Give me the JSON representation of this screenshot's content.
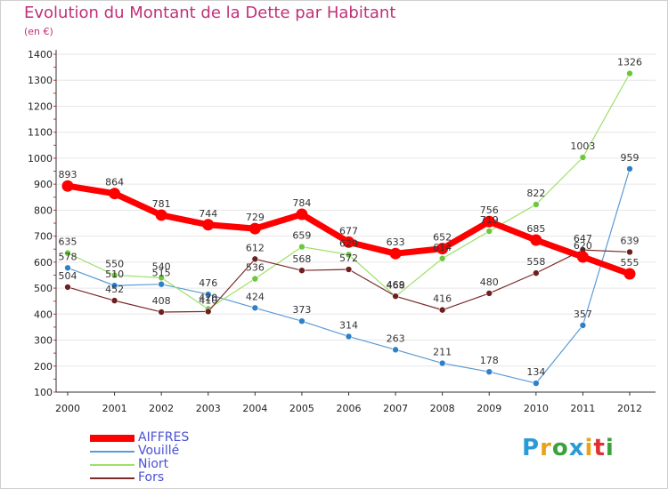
{
  "header": {
    "title": "Evolution du Montant de la Dette par Habitant",
    "unit": "(en €)"
  },
  "brand": {
    "text": "Proxiti",
    "letter_colors": [
      "#2a9bd6",
      "#e8a317",
      "#3aa23a",
      "#2a9bd6",
      "#e8a317",
      "#e03030",
      "#3aa23a"
    ]
  },
  "chart_data": {
    "type": "line",
    "title": "Evolution du Montant de la Dette par Habitant",
    "ylabel": "(en €)",
    "xlabel": "",
    "ylim": [
      100,
      1400
    ],
    "y_ticks": [
      100,
      200,
      300,
      400,
      500,
      600,
      700,
      800,
      900,
      1000,
      1100,
      1200,
      1300,
      1400
    ],
    "categories": [
      "2000",
      "2001",
      "2002",
      "2003",
      "2004",
      "2005",
      "2006",
      "2007",
      "2008",
      "2009",
      "2010",
      "2011",
      "2012"
    ],
    "legend_position": "bottom-left",
    "series": [
      {
        "name": "Vouillé",
        "color": "#5b9bd5",
        "marker": "#2f80c8",
        "line_width": 1.2,
        "marker_r": 3.5,
        "values": [
          578,
          510,
          515,
          476,
          424,
          373,
          314,
          263,
          211,
          178,
          134,
          357,
          959
        ]
      },
      {
        "name": "Niort",
        "color": "#9ee06a",
        "marker": "#6cc83a",
        "line_width": 1.2,
        "marker_r": 3.5,
        "values": [
          635,
          550,
          540,
          420,
          536,
          659,
          629,
          468,
          614,
          719,
          822,
          1003,
          1326
        ]
      },
      {
        "name": "Fors",
        "color": "#7a2a2a",
        "marker": "#6e1f1f",
        "line_width": 1.2,
        "marker_r": 3.5,
        "values": [
          504,
          452,
          408,
          410,
          612,
          568,
          572,
          469,
          416,
          480,
          558,
          647,
          639
        ]
      },
      {
        "name": "AIFFRES",
        "color": "#ff0000",
        "marker": "#ff0000",
        "line_width": 7,
        "marker_r": 6.5,
        "values": [
          893,
          864,
          781,
          744,
          729,
          784,
          677,
          633,
          652,
          756,
          685,
          620,
          555
        ]
      }
    ],
    "legend_order": [
      "AIFFRES",
      "Vouillé",
      "Niort",
      "Fors"
    ]
  }
}
